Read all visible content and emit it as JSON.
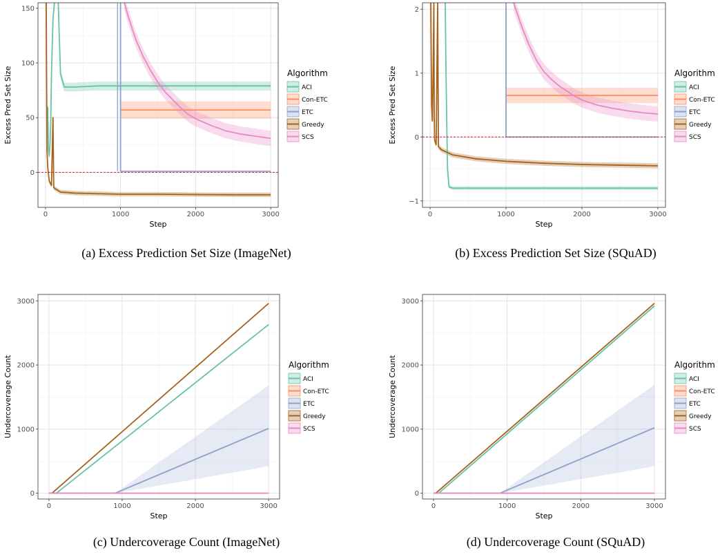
{
  "chart_data": [
    {
      "id": "a",
      "type": "line",
      "caption": "(a) Excess Prediction Set Size (ImageNet)",
      "xlabel": "Step",
      "ylabel": "Excess Pred Set Size",
      "xlim": [
        -100,
        3100
      ],
      "ylim": [
        -32,
        155
      ],
      "xticks": [
        0,
        1000,
        2000,
        3000
      ],
      "yticks": [
        0,
        50,
        100,
        150
      ],
      "hline": 0,
      "grid": true,
      "legend": {
        "title": "Algorithm",
        "position": "right",
        "entries": [
          "ACI",
          "Con-ETC",
          "ETC",
          "Greedy",
          "SCS"
        ]
      },
      "series": [
        {
          "name": "ACI",
          "color": "#66c2a5",
          "points": [
            [
              30,
              60
            ],
            [
              40,
              20
            ],
            [
              50,
              15
            ],
            [
              60,
              25
            ],
            [
              70,
              45
            ],
            [
              80,
              90
            ],
            [
              100,
              140
            ],
            [
              120,
              155
            ]
          ],
          "tail": [
            [
              170,
              155
            ],
            [
              200,
              90
            ],
            [
              250,
              78
            ],
            [
              400,
              78
            ],
            [
              700,
              79
            ],
            [
              1000,
              79
            ],
            [
              1500,
              79
            ],
            [
              2000,
              79
            ],
            [
              2500,
              79
            ],
            [
              3000,
              79
            ]
          ],
          "band": 4
        },
        {
          "name": "Con-ETC",
          "color": "#fc8d62",
          "points": [
            [
              1000,
              57
            ],
            [
              1500,
              57
            ],
            [
              2000,
              57
            ],
            [
              2500,
              57
            ],
            [
              3000,
              57
            ]
          ],
          "band": 8
        },
        {
          "name": "ETC",
          "color": "#8da0cb",
          "points": [
            [
              1000,
              155
            ],
            [
              1000,
              1
            ],
            [
              1500,
              1
            ],
            [
              2000,
              1
            ],
            [
              2500,
              1
            ],
            [
              3000,
              1
            ]
          ],
          "band": 0.5,
          "pre": [
            [
              960,
              155
            ],
            [
              960,
              1
            ]
          ]
        },
        {
          "name": "Greedy",
          "color": "#a6611a",
          "points": [
            [
              10,
              155
            ],
            [
              20,
              20
            ],
            [
              30,
              5
            ],
            [
              50,
              -8
            ],
            [
              80,
              -12
            ],
            [
              100,
              50
            ],
            [
              110,
              -14
            ],
            [
              130,
              -15
            ],
            [
              200,
              -18
            ],
            [
              400,
              -19
            ],
            [
              700,
              -19.5
            ],
            [
              1000,
              -20
            ],
            [
              1500,
              -20
            ],
            [
              2000,
              -20.3
            ],
            [
              2500,
              -20.5
            ],
            [
              3000,
              -20.5
            ]
          ],
          "band": 2
        },
        {
          "name": "SCS",
          "color": "#e78ac3",
          "points": [
            [
              1050,
              155
            ],
            [
              1100,
              143
            ],
            [
              1200,
              122
            ],
            [
              1300,
              106
            ],
            [
              1400,
              93
            ],
            [
              1500,
              82
            ],
            [
              1600,
              73
            ],
            [
              1700,
              66
            ],
            [
              1800,
              59
            ],
            [
              1900,
              53
            ],
            [
              2000,
              49
            ],
            [
              2200,
              43
            ],
            [
              2400,
              38
            ],
            [
              2600,
              35
            ],
            [
              2800,
              33
            ],
            [
              3000,
              31
            ]
          ],
          "band": 7
        }
      ]
    },
    {
      "id": "b",
      "type": "line",
      "caption": "(b) Excess Prediction Set Size (SQuAD)",
      "xlabel": "Step",
      "ylabel": "Excess Pred Set Size",
      "xlim": [
        -100,
        3100
      ],
      "ylim": [
        -1.1,
        2.1
      ],
      "xticks": [
        0,
        1000,
        2000,
        3000
      ],
      "yticks": [
        -1,
        0,
        1,
        2
      ],
      "hline": 0,
      "grid": true,
      "legend": {
        "title": "Algorithm",
        "position": "right",
        "entries": [
          "ACI",
          "Con-ETC",
          "ETC",
          "Greedy",
          "SCS"
        ]
      },
      "series": [
        {
          "name": "ACI",
          "color": "#66c2a5",
          "points": [
            [
              200,
              2.1
            ],
            [
              210,
              1.0
            ],
            [
              220,
              0.2
            ],
            [
              230,
              -0.5
            ],
            [
              250,
              -0.78
            ],
            [
              300,
              -0.8
            ],
            [
              1000,
              -0.8
            ],
            [
              2000,
              -0.8
            ],
            [
              3000,
              -0.8
            ]
          ],
          "band": 0.03
        },
        {
          "name": "Con-ETC",
          "color": "#fc8d62",
          "points": [
            [
              1000,
              0.65
            ],
            [
              1500,
              0.65
            ],
            [
              2000,
              0.65
            ],
            [
              2500,
              0.65
            ],
            [
              3000,
              0.65
            ]
          ],
          "band": 0.12
        },
        {
          "name": "ETC",
          "color": "#8da0cb",
          "points": [
            [
              1000,
              2.1
            ],
            [
              1000,
              0.0
            ],
            [
              1500,
              0.0
            ],
            [
              2000,
              0.0
            ],
            [
              2500,
              0.0
            ],
            [
              3000,
              0.0
            ]
          ],
          "band": 0.01
        },
        {
          "name": "Greedy",
          "color": "#a6611a",
          "points": [
            [
              10,
              2.1
            ],
            [
              20,
              0.5
            ],
            [
              30,
              0.25
            ],
            [
              40,
              1.0
            ],
            [
              50,
              2.1
            ],
            [
              55,
              0.3
            ],
            [
              60,
              -0.05
            ],
            [
              80,
              -0.12
            ],
            [
              100,
              2.1
            ],
            [
              110,
              -0.15
            ],
            [
              150,
              -0.2
            ],
            [
              300,
              -0.28
            ],
            [
              600,
              -0.34
            ],
            [
              1000,
              -0.38
            ],
            [
              1500,
              -0.41
            ],
            [
              2000,
              -0.43
            ],
            [
              2500,
              -0.44
            ],
            [
              3000,
              -0.45
            ]
          ],
          "band": 0.04
        },
        {
          "name": "SCS",
          "color": "#e78ac3",
          "points": [
            [
              1100,
              2.1
            ],
            [
              1200,
              1.75
            ],
            [
              1300,
              1.45
            ],
            [
              1400,
              1.2
            ],
            [
              1500,
              1.02
            ],
            [
              1600,
              0.9
            ],
            [
              1700,
              0.8
            ],
            [
              1800,
              0.72
            ],
            [
              1900,
              0.64
            ],
            [
              2000,
              0.58
            ],
            [
              2200,
              0.5
            ],
            [
              2400,
              0.45
            ],
            [
              2600,
              0.41
            ],
            [
              2800,
              0.38
            ],
            [
              3000,
              0.36
            ]
          ],
          "band": 0.12
        }
      ]
    },
    {
      "id": "c",
      "type": "line",
      "caption": "(c) Undercoverage Count (ImageNet)",
      "xlabel": "Step",
      "ylabel": "Undercoverage Count",
      "xlim": [
        -150,
        3150
      ],
      "ylim": [
        -90,
        3100
      ],
      "xticks": [
        0,
        1000,
        2000,
        3000
      ],
      "yticks": [
        0,
        1000,
        2000,
        3000
      ],
      "grid": true,
      "legend": {
        "title": "Algorithm",
        "position": "right",
        "entries": [
          "ACI",
          "Con-ETC",
          "ETC",
          "Greedy",
          "SCS"
        ]
      },
      "series": [
        {
          "name": "ACI",
          "color": "#66c2a5",
          "points": [
            [
              0,
              0
            ],
            [
              100,
              0
            ],
            [
              3000,
              2630
            ]
          ],
          "band": 5
        },
        {
          "name": "Con-ETC",
          "color": "#fc8d62",
          "points": [
            [
              0,
              0
            ],
            [
              3000,
              0
            ]
          ],
          "band": 0
        },
        {
          "name": "ETC",
          "color": "#8da0cb",
          "points": [
            [
              0,
              0
            ],
            [
              900,
              0
            ],
            [
              3000,
              1010
            ]
          ],
          "bandLow": [
            [
              900,
              0
            ],
            [
              3000,
              420
            ]
          ],
          "bandHigh": [
            [
              900,
              0
            ],
            [
              3000,
              1680
            ]
          ]
        },
        {
          "name": "Greedy",
          "color": "#a6611a",
          "points": [
            [
              0,
              0
            ],
            [
              40,
              0
            ],
            [
              3000,
              2960
            ]
          ],
          "band": 5
        },
        {
          "name": "SCS",
          "color": "#e78ac3",
          "points": [
            [
              0,
              0
            ],
            [
              3000,
              0
            ]
          ],
          "band": 0
        }
      ]
    },
    {
      "id": "d",
      "type": "line",
      "caption": "(d) Undercoverage Count (SQuAD)",
      "xlabel": "Step",
      "ylabel": "Undercoverage Count",
      "xlim": [
        -150,
        3150
      ],
      "ylim": [
        -90,
        3100
      ],
      "xticks": [
        0,
        1000,
        2000,
        3000
      ],
      "yticks": [
        0,
        1000,
        2000,
        3000
      ],
      "grid": true,
      "legend": {
        "title": "Algorithm",
        "position": "right",
        "entries": [
          "ACI",
          "Con-ETC",
          "ETC",
          "Greedy",
          "SCS"
        ]
      },
      "series": [
        {
          "name": "ACI",
          "color": "#66c2a5",
          "points": [
            [
              0,
              0
            ],
            [
              70,
              0
            ],
            [
              3000,
              2920
            ]
          ],
          "band": 5
        },
        {
          "name": "Con-ETC",
          "color": "#fc8d62",
          "points": [
            [
              0,
              0
            ],
            [
              3000,
              0
            ]
          ],
          "band": 0
        },
        {
          "name": "ETC",
          "color": "#8da0cb",
          "points": [
            [
              0,
              0
            ],
            [
              900,
              0
            ],
            [
              3000,
              1020
            ]
          ],
          "bandLow": [
            [
              900,
              0
            ],
            [
              3000,
              420
            ]
          ],
          "bandHigh": [
            [
              900,
              0
            ],
            [
              3000,
              1690
            ]
          ]
        },
        {
          "name": "Greedy",
          "color": "#a6611a",
          "points": [
            [
              0,
              0
            ],
            [
              30,
              0
            ],
            [
              3000,
              2960
            ]
          ],
          "band": 5
        },
        {
          "name": "SCS",
          "color": "#e78ac3",
          "points": [
            [
              0,
              0
            ],
            [
              3000,
              0
            ]
          ],
          "band": 0
        }
      ]
    }
  ]
}
